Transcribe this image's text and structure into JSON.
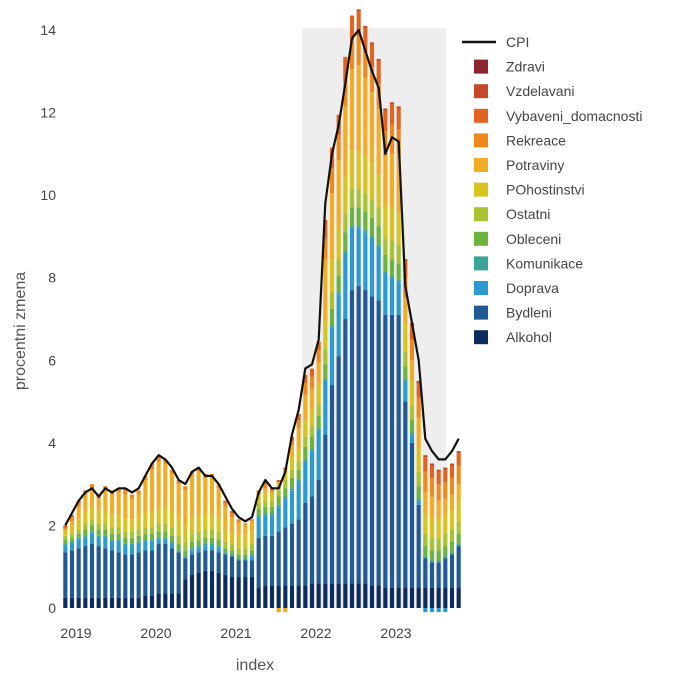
{
  "chart_data": {
    "type": "bar",
    "stacked": true,
    "xlabel": "index",
    "ylabel": "procentni zmena",
    "ylim": [
      0,
      14
    ],
    "yticks": [
      0,
      2,
      4,
      6,
      8,
      10,
      12,
      14
    ],
    "xlim": [
      2019.0,
      2023.8
    ],
    "xticks": [
      {
        "value": 2019,
        "label": "2019"
      },
      {
        "value": 2020,
        "label": "2020"
      },
      {
        "value": 2021,
        "label": "2021"
      },
      {
        "value": 2022,
        "label": "2022"
      },
      {
        "value": 2023,
        "label": "2023"
      }
    ],
    "months_start": "2019-01",
    "grid": false,
    "legend_position": "right",
    "shaded_region": {
      "x_start": 2022.0,
      "x_end": 2023.8,
      "color": "#eeeeee"
    },
    "line_series": {
      "name": "CPI",
      "color": "#111111",
      "values": [
        2.0,
        2.3,
        2.6,
        2.8,
        2.9,
        2.7,
        2.9,
        2.8,
        2.9,
        2.9,
        2.8,
        2.9,
        3.2,
        3.5,
        3.7,
        3.6,
        3.4,
        3.1,
        3.0,
        3.3,
        3.4,
        3.2,
        3.2,
        3.0,
        2.7,
        2.4,
        2.2,
        2.1,
        2.2,
        2.8,
        3.1,
        2.9,
        2.9,
        3.3,
        4.2,
        4.8,
        5.8,
        5.9,
        6.5,
        9.8,
        11.0,
        11.7,
        12.7,
        13.8,
        14.0,
        13.5,
        13.0,
        12.6,
        11.0,
        11.4,
        11.3,
        7.8,
        6.9,
        6.0,
        4.1,
        3.8,
        3.6,
        3.6,
        3.8,
        4.1
      ]
    },
    "series": [
      {
        "name": "Alkohol",
        "color": "#0b2c5c",
        "values": [
          0.25,
          0.25,
          0.25,
          0.25,
          0.25,
          0.25,
          0.25,
          0.25,
          0.25,
          0.25,
          0.25,
          0.25,
          0.3,
          0.3,
          0.35,
          0.35,
          0.35,
          0.35,
          0.7,
          0.8,
          0.85,
          0.9,
          0.9,
          0.85,
          0.8,
          0.75,
          0.75,
          0.75,
          0.75,
          0.5,
          0.55,
          0.55,
          0.55,
          0.55,
          0.55,
          0.55,
          0.55,
          0.6,
          0.6,
          0.6,
          0.6,
          0.6,
          0.6,
          0.6,
          0.6,
          0.6,
          0.55,
          0.55,
          0.5,
          0.5,
          0.5,
          0.5,
          0.5,
          0.5,
          0.5,
          0.5,
          0.5,
          0.5,
          0.5,
          0.5
        ]
      },
      {
        "name": "Bydleni",
        "color": "#1f5a95",
        "values": [
          1.1,
          1.15,
          1.2,
          1.25,
          1.3,
          1.25,
          1.2,
          1.15,
          1.1,
          1.05,
          1.05,
          1.1,
          1.1,
          1.1,
          1.2,
          1.2,
          1.1,
          1.0,
          0.5,
          0.5,
          0.5,
          0.5,
          0.5,
          0.5,
          0.5,
          0.5,
          0.4,
          0.4,
          0.4,
          1.2,
          1.2,
          1.2,
          1.3,
          1.4,
          1.5,
          1.6,
          2.0,
          2.1,
          2.5,
          3.6,
          4.8,
          5.5,
          6.4,
          7.1,
          7.2,
          7.1,
          7.0,
          6.9,
          6.6,
          6.6,
          6.6,
          4.5,
          3.5,
          2.0,
          0.7,
          0.6,
          0.6,
          0.7,
          0.8,
          1.0
        ]
      },
      {
        "name": "Doprava",
        "color": "#2a9ad1",
        "values": [
          0.15,
          0.15,
          0.2,
          0.2,
          0.25,
          0.2,
          0.25,
          0.2,
          0.25,
          0.2,
          0.2,
          0.2,
          0.2,
          0.2,
          0.1,
          0.1,
          0.1,
          0.0,
          0.0,
          0.1,
          0.1,
          0.1,
          0.1,
          0.1,
          0.0,
          0.0,
          0.0,
          0.0,
          0.1,
          0.5,
          0.5,
          0.5,
          0.6,
          0.7,
          0.8,
          0.9,
          1.0,
          1.1,
          1.2,
          1.3,
          1.4,
          1.5,
          1.6,
          1.5,
          1.4,
          1.4,
          1.4,
          1.3,
          1.0,
          0.9,
          0.8,
          0.5,
          0.2,
          0.1,
          -0.1,
          -0.1,
          -0.1,
          -0.1,
          0.0,
          0.0
        ]
      },
      {
        "name": "Komunikace",
        "color": "#3aa39a",
        "values": [
          0.05,
          0.05,
          0.05,
          0.05,
          0.05,
          0.05,
          0.05,
          0.05,
          0.05,
          0.05,
          0.05,
          0.05,
          0.05,
          0.05,
          0.05,
          0.05,
          0.05,
          0.05,
          0.05,
          0.05,
          0.05,
          0.05,
          0.05,
          0.05,
          0.05,
          0.05,
          0.05,
          0.05,
          0.05,
          0.05,
          0.05,
          0.05,
          0.05,
          0.05,
          0.05,
          0.05,
          0.05,
          0.05,
          0.05,
          0.05,
          0.05,
          0.05,
          0.05,
          0.05,
          0.05,
          0.05,
          0.05,
          0.05,
          0.05,
          0.05,
          0.05,
          0.05,
          0.05,
          0.05,
          0.05,
          0.05,
          0.05,
          0.05,
          0.05,
          0.05
        ]
      },
      {
        "name": "Obleceni",
        "color": "#6cb33f",
        "values": [
          0.1,
          0.1,
          0.1,
          0.15,
          0.15,
          0.15,
          0.15,
          0.15,
          0.15,
          0.15,
          0.15,
          0.15,
          0.15,
          0.15,
          0.15,
          0.15,
          0.15,
          0.15,
          0.15,
          0.15,
          0.15,
          0.15,
          0.15,
          0.15,
          0.1,
          0.1,
          0.1,
          0.1,
          0.1,
          0.15,
          0.15,
          0.15,
          0.2,
          0.2,
          0.25,
          0.25,
          0.3,
          0.3,
          0.3,
          0.35,
          0.4,
          0.4,
          0.45,
          0.45,
          0.45,
          0.45,
          0.45,
          0.45,
          0.4,
          0.4,
          0.4,
          0.3,
          0.3,
          0.3,
          0.25,
          0.25,
          0.25,
          0.25,
          0.25,
          0.25
        ]
      },
      {
        "name": "Ostatni",
        "color": "#a8c232",
        "values": [
          0.1,
          0.1,
          0.1,
          0.15,
          0.15,
          0.15,
          0.15,
          0.15,
          0.15,
          0.15,
          0.15,
          0.15,
          0.15,
          0.15,
          0.2,
          0.2,
          0.2,
          0.2,
          0.2,
          0.2,
          0.2,
          0.2,
          0.2,
          0.2,
          0.15,
          0.15,
          0.15,
          0.15,
          0.15,
          0.15,
          0.15,
          0.15,
          0.15,
          0.2,
          0.2,
          0.2,
          0.25,
          0.25,
          0.3,
          0.35,
          0.4,
          0.4,
          0.45,
          0.45,
          0.45,
          0.45,
          0.45,
          0.45,
          0.4,
          0.45,
          0.45,
          0.35,
          0.35,
          0.35,
          0.3,
          0.3,
          0.3,
          0.3,
          0.3,
          0.3
        ]
      },
      {
        "name": "POhostinstvi",
        "color": "#d9c41e",
        "values": [
          0.15,
          0.2,
          0.25,
          0.3,
          0.3,
          0.3,
          0.3,
          0.3,
          0.3,
          0.3,
          0.3,
          0.3,
          0.35,
          0.4,
          0.4,
          0.4,
          0.4,
          0.4,
          0.4,
          0.4,
          0.4,
          0.4,
          0.4,
          0.35,
          0.3,
          0.3,
          0.3,
          0.3,
          0.3,
          0.2,
          0.2,
          0.2,
          0.2,
          0.25,
          0.3,
          0.3,
          0.4,
          0.4,
          0.5,
          0.7,
          0.8,
          0.8,
          0.9,
          0.9,
          0.9,
          0.9,
          0.9,
          0.8,
          0.8,
          0.8,
          0.8,
          0.7,
          0.6,
          0.6,
          0.5,
          0.5,
          0.45,
          0.45,
          0.45,
          0.45
        ]
      },
      {
        "name": "Potraviny",
        "color": "#f2ad24",
        "values": [
          0.0,
          0.1,
          0.3,
          0.4,
          0.45,
          0.3,
          0.5,
          0.5,
          0.55,
          0.6,
          0.5,
          0.55,
          0.8,
          1.0,
          1.1,
          1.05,
          0.9,
          0.85,
          0.85,
          1.0,
          1.05,
          0.85,
          0.85,
          0.7,
          0.55,
          0.35,
          0.3,
          0.25,
          0.25,
          0.0,
          0.1,
          0.0,
          -0.1,
          -0.1,
          0.3,
          0.5,
          0.6,
          0.5,
          0.5,
          1.5,
          1.6,
          1.6,
          1.7,
          2.0,
          2.1,
          1.9,
          1.7,
          1.6,
          1.2,
          1.3,
          1.4,
          0.6,
          0.5,
          0.7,
          0.5,
          0.5,
          0.45,
          0.4,
          0.4,
          0.45
        ]
      },
      {
        "name": "Rekreace",
        "color": "#ee8a1c",
        "values": [
          0.05,
          0.1,
          0.1,
          0.1,
          0.1,
          0.1,
          0.1,
          0.1,
          0.1,
          0.15,
          0.1,
          0.1,
          0.1,
          0.15,
          0.15,
          0.1,
          0.1,
          0.1,
          0.1,
          0.1,
          0.1,
          0.1,
          0.1,
          0.1,
          0.1,
          0.1,
          0.1,
          0.05,
          0.05,
          0.1,
          0.1,
          0.05,
          0.0,
          0.0,
          0.1,
          0.2,
          0.3,
          0.3,
          0.3,
          0.5,
          0.6,
          0.6,
          0.6,
          0.7,
          0.7,
          0.6,
          0.6,
          0.6,
          0.6,
          0.7,
          0.6,
          0.5,
          0.5,
          0.5,
          0.5,
          0.45,
          0.4,
          0.4,
          0.4,
          0.45
        ]
      },
      {
        "name": "Vybaveni_domacnosti",
        "color": "#e2621f",
        "values": [
          0.05,
          0.05,
          0.05,
          0.0,
          0.0,
          0.0,
          0.0,
          0.0,
          0.0,
          0.0,
          0.0,
          0.0,
          0.0,
          0.0,
          0.0,
          0.0,
          0.0,
          0.0,
          0.0,
          0.0,
          0.0,
          0.0,
          0.0,
          0.0,
          0.05,
          0.05,
          0.0,
          0.0,
          0.0,
          0.0,
          0.05,
          0.05,
          0.05,
          0.05,
          0.1,
          0.15,
          0.2,
          0.2,
          0.2,
          0.45,
          0.5,
          0.5,
          0.6,
          0.6,
          0.6,
          0.6,
          0.55,
          0.55,
          0.5,
          0.5,
          0.5,
          0.4,
          0.35,
          0.35,
          0.35,
          0.3,
          0.3,
          0.3,
          0.3,
          0.3
        ]
      },
      {
        "name": "Vzdelavani",
        "color": "#c24a28",
        "values": [
          0.0,
          0.0,
          0.0,
          0.0,
          0.0,
          0.0,
          0.0,
          0.0,
          0.0,
          0.0,
          0.0,
          0.0,
          0.0,
          0.0,
          0.0,
          0.0,
          0.0,
          0.0,
          0.0,
          0.0,
          0.0,
          0.0,
          0.0,
          0.0,
          0.0,
          0.0,
          0.0,
          0.0,
          0.0,
          0.0,
          0.0,
          0.0,
          0.0,
          0.0,
          0.0,
          0.0,
          0.0,
          0.0,
          0.0,
          0.0,
          0.0,
          0.0,
          0.0,
          0.0,
          0.05,
          0.05,
          0.05,
          0.05,
          0.05,
          0.05,
          0.05,
          0.05,
          0.05,
          0.05,
          0.05,
          0.05,
          0.05,
          0.05,
          0.05,
          0.05
        ]
      },
      {
        "name": "Zdravi",
        "color": "#8b2330",
        "values": [
          0.0,
          0.0,
          0.0,
          0.0,
          0.0,
          0.0,
          0.0,
          0.0,
          0.0,
          0.0,
          0.0,
          0.0,
          0.0,
          0.0,
          0.0,
          0.0,
          0.0,
          0.0,
          0.0,
          0.0,
          0.0,
          0.0,
          0.0,
          0.0,
          0.0,
          0.0,
          0.0,
          0.0,
          0.0,
          0.0,
          0.0,
          0.0,
          0.0,
          0.0,
          0.0,
          0.0,
          0.0,
          0.0,
          0.0,
          0.0,
          0.0,
          0.0,
          0.0,
          0.0,
          0.0,
          0.0,
          0.0,
          0.0,
          0.0,
          0.0,
          0.0,
          0.0,
          0.0,
          0.0,
          0.0,
          0.0,
          0.0,
          0.0,
          0.0,
          0.0
        ]
      }
    ],
    "legend_order": [
      "CPI",
      "Zdravi",
      "Vzdelavani",
      "Vybaveni_domacnosti",
      "Rekreace",
      "Potraviny",
      "POhostinstvi",
      "Ostatni",
      "Obleceni",
      "Komunikace",
      "Doprava",
      "Bydleni",
      "Alkohol"
    ]
  }
}
